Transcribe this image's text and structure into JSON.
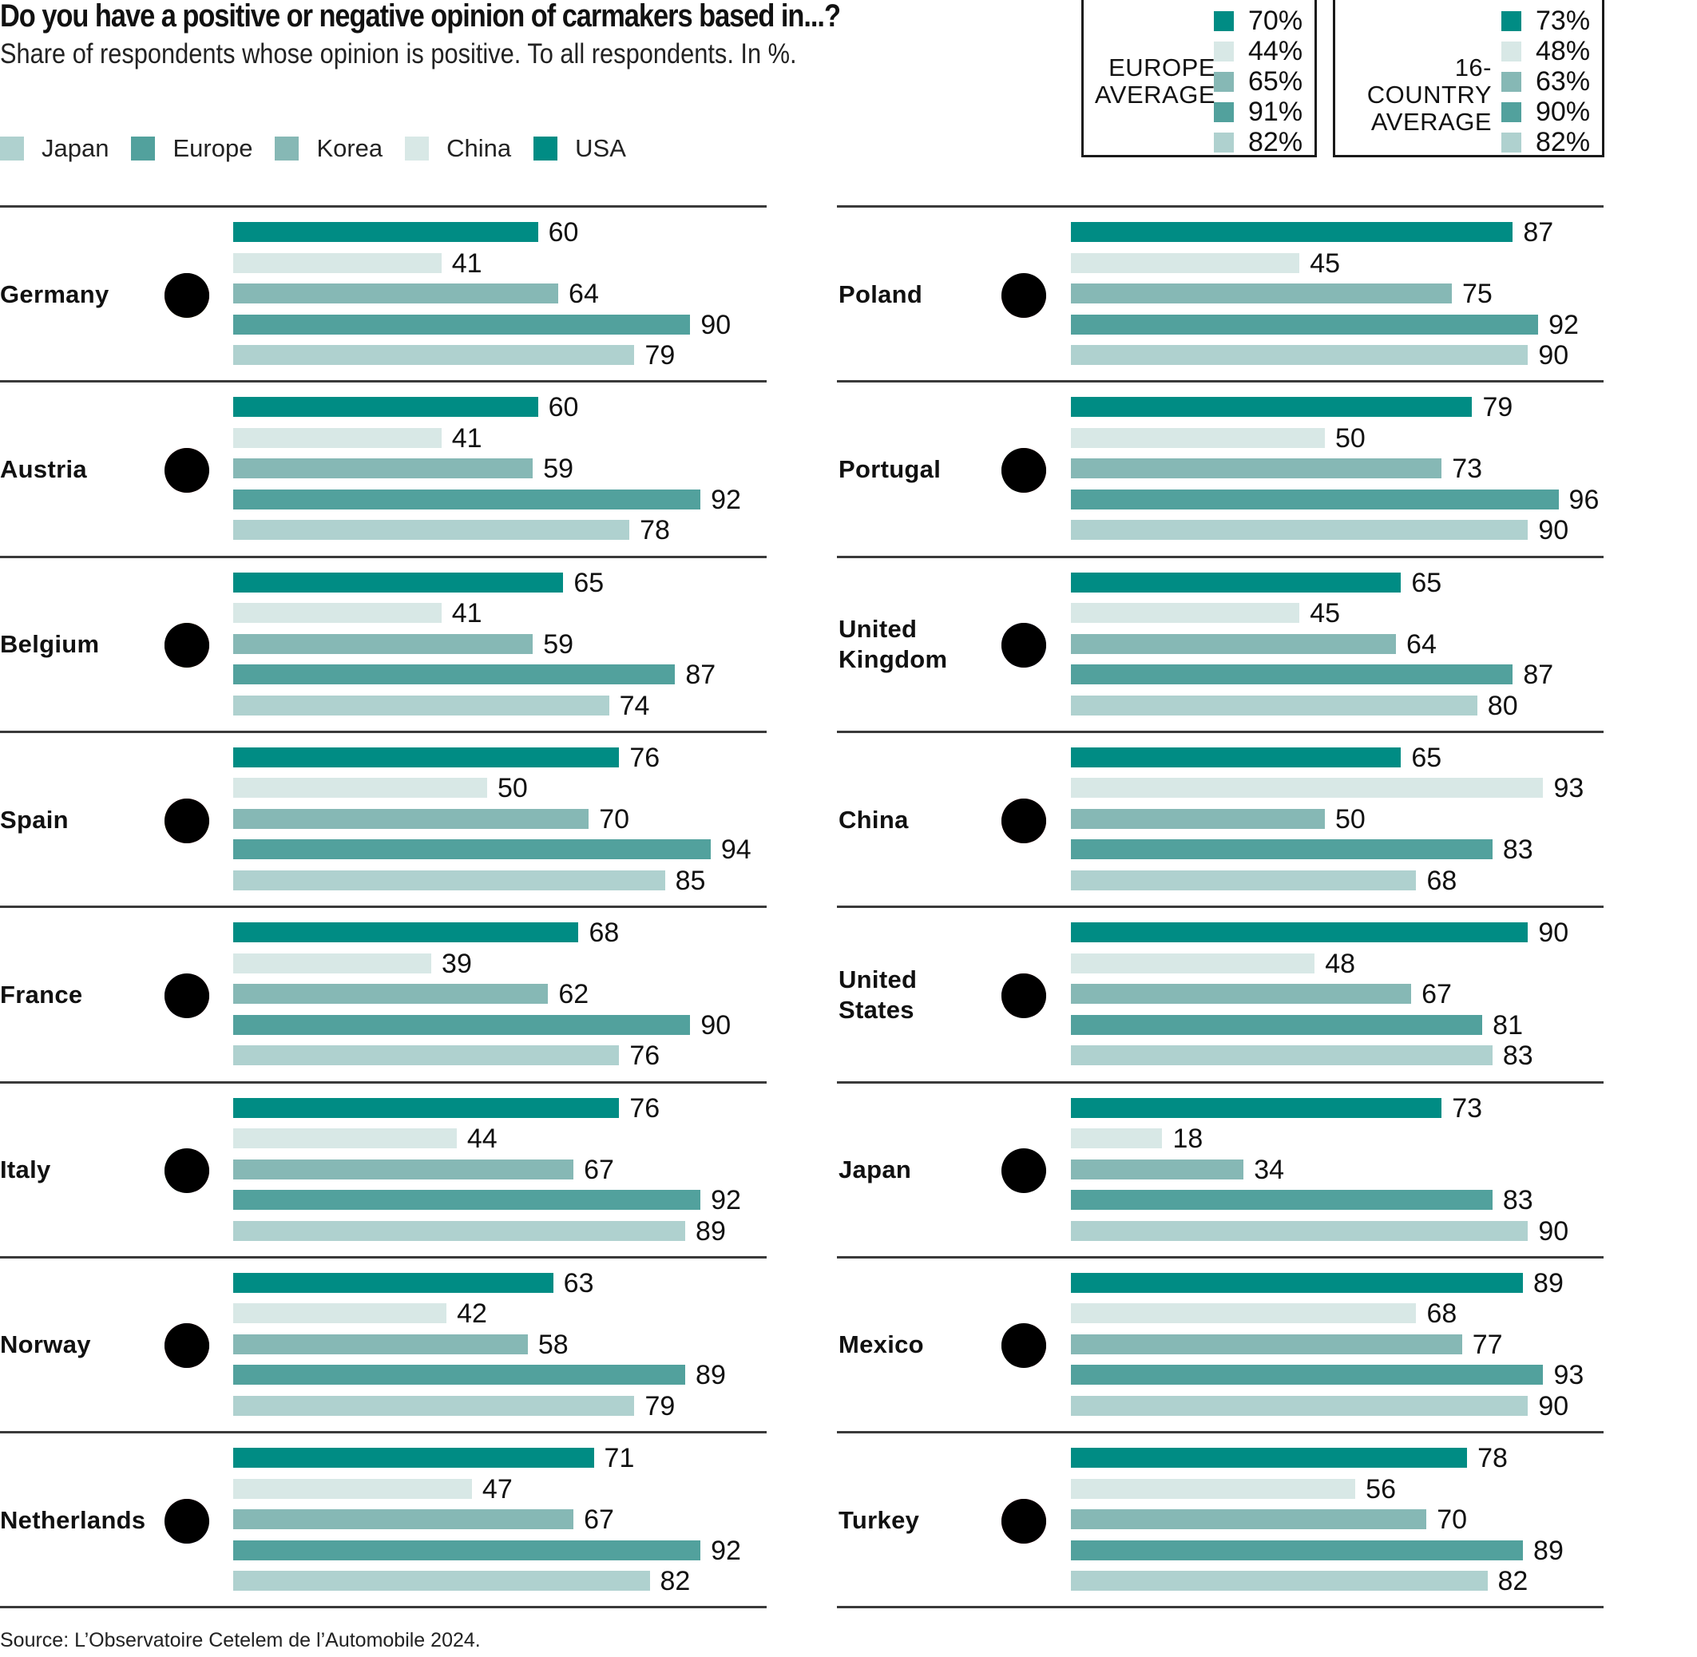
{
  "header": {
    "title": "Do you have a positive or negative opinion of carmakers based in...?",
    "subtitle": "Share of respondents whose opinion is positive. To all respondents. In %."
  },
  "legend": [
    {
      "name": "Japan",
      "color": "#afd1cf"
    },
    {
      "name": "Europe",
      "color": "#52a19d"
    },
    {
      "name": "Korea",
      "color": "#86b8b5"
    },
    {
      "name": "China",
      "color": "#d8e8e6"
    },
    {
      "name": "USA",
      "color": "#008c84"
    }
  ],
  "averages": [
    {
      "title_line1": "EUROPE",
      "title_line2": "AVERAGE",
      "values": [
        "70%",
        "44%",
        "65%",
        "91%",
        "82%"
      ]
    },
    {
      "title_line1": "16-COUNTRY",
      "title_line2": "AVERAGE",
      "values": [
        "73%",
        "48%",
        "63%",
        "90%",
        "82%"
      ]
    }
  ],
  "source": "Source: L’Observatoire Cetelem de l’Automobile 2024.",
  "chart_data": {
    "type": "bar",
    "orientation": "horizontal",
    "title": "Do you have a positive or negative opinion of carmakers based in...?",
    "subtitle": "Share of respondents whose opinion is positive. To all respondents. In %.",
    "xlabel": "",
    "ylabel": "",
    "xlim": [
      0,
      100
    ],
    "grid": false,
    "legend_position": "top-left",
    "bar_order": [
      "USA",
      "China",
      "Korea",
      "Europe",
      "Japan"
    ],
    "series_colors": {
      "USA": "#008c84",
      "China": "#d8e8e6",
      "Korea": "#86b8b5",
      "Europe": "#52a19d",
      "Japan": "#afd1cf"
    },
    "averages": {
      "Europe average": {
        "USA": 70,
        "China": 44,
        "Korea": 65,
        "Europe": 91,
        "Japan": 82
      },
      "16-country average": {
        "USA": 73,
        "China": 48,
        "Korea": 63,
        "Europe": 90,
        "Japan": 82
      }
    },
    "columns": [
      {
        "countries": [
          {
            "name": [
              "Germany"
            ],
            "flag": "germany",
            "values": [
              60,
              41,
              64,
              90,
              79
            ]
          },
          {
            "name": [
              "Austria"
            ],
            "flag": "austria",
            "values": [
              60,
              41,
              59,
              92,
              78
            ]
          },
          {
            "name": [
              "Belgium"
            ],
            "flag": "belgium",
            "values": [
              65,
              41,
              59,
              87,
              74
            ]
          },
          {
            "name": [
              "Spain"
            ],
            "flag": "spain",
            "values": [
              76,
              50,
              70,
              94,
              85
            ]
          },
          {
            "name": [
              "France"
            ],
            "flag": "france",
            "values": [
              68,
              39,
              62,
              90,
              76
            ]
          },
          {
            "name": [
              "Italy"
            ],
            "flag": "italy",
            "values": [
              76,
              44,
              67,
              92,
              89
            ]
          },
          {
            "name": [
              "Norway"
            ],
            "flag": "norway",
            "values": [
              63,
              42,
              58,
              89,
              79
            ]
          },
          {
            "name": [
              "Netherlands"
            ],
            "flag": "netherlands",
            "values": [
              71,
              47,
              67,
              92,
              82
            ]
          }
        ]
      },
      {
        "countries": [
          {
            "name": [
              "Poland"
            ],
            "flag": "poland",
            "values": [
              87,
              45,
              75,
              92,
              90
            ]
          },
          {
            "name": [
              "Portugal"
            ],
            "flag": "portugal",
            "values": [
              79,
              50,
              73,
              96,
              90
            ]
          },
          {
            "name": [
              "United",
              "Kingdom"
            ],
            "flag": "united-kingdom",
            "values": [
              65,
              45,
              64,
              87,
              80
            ]
          },
          {
            "name": [
              "China"
            ],
            "flag": "china",
            "values": [
              65,
              93,
              50,
              83,
              68
            ]
          },
          {
            "name": [
              "United",
              "States"
            ],
            "flag": "united-states",
            "values": [
              90,
              48,
              67,
              81,
              83
            ]
          },
          {
            "name": [
              "Japan"
            ],
            "flag": "japan",
            "values": [
              73,
              18,
              34,
              83,
              90
            ]
          },
          {
            "name": [
              "Mexico"
            ],
            "flag": "mexico",
            "values": [
              89,
              68,
              77,
              93,
              90
            ]
          },
          {
            "name": [
              "Turkey"
            ],
            "flag": "turkey",
            "values": [
              78,
              56,
              70,
              89,
              82
            ]
          }
        ]
      }
    ]
  }
}
